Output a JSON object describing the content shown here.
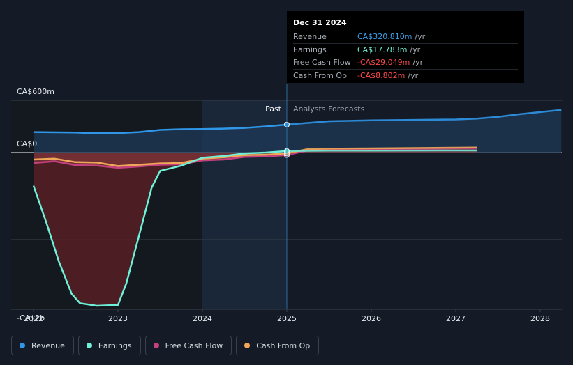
{
  "tooltip": {
    "date": "Dec 31 2024",
    "rows": [
      {
        "label": "Revenue",
        "value": "CA$320.810m",
        "unit": "/yr",
        "color": "#3b9fe8"
      },
      {
        "label": "Earnings",
        "value": "CA$17.783m",
        "unit": "/yr",
        "color": "#6ff0d8"
      },
      {
        "label": "Free Cash Flow",
        "value": "-CA$29.049m",
        "unit": "/yr",
        "color": "#ff4a4a"
      },
      {
        "label": "Cash From Op",
        "value": "-CA$8.802m",
        "unit": "/yr",
        "color": "#ff4a4a"
      }
    ]
  },
  "labels": {
    "past": "Past",
    "forecast": "Analysts Forecasts"
  },
  "legend": [
    {
      "label": "Revenue",
      "color": "#2f96e8"
    },
    {
      "label": "Earnings",
      "color": "#6ff0d8"
    },
    {
      "label": "Free Cash Flow",
      "color": "#c3417f"
    },
    {
      "label": "Cash From Op",
      "color": "#f0a858"
    }
  ],
  "chart_data": {
    "type": "line",
    "x_ticks": [
      "2022",
      "2023",
      "2024",
      "2025",
      "2026",
      "2027",
      "2028"
    ],
    "y_ticks": [
      {
        "label": "CA$600m",
        "value": 600
      },
      {
        "label": "CA$0",
        "value": 0
      },
      {
        "label": "-CA$2b",
        "value": -1800
      }
    ],
    "ylim": [
      -1800,
      600
    ],
    "xlim": [
      2022.0,
      2028.25
    ],
    "divider": 2025.0,
    "series": [
      {
        "name": "Revenue",
        "color": "#2f96e8",
        "x": [
          2022.0,
          2022.5,
          2022.7,
          2023.0,
          2023.25,
          2023.5,
          2023.75,
          2024.0,
          2024.25,
          2024.5,
          2024.75,
          2025.0,
          2025.5,
          2026.0,
          2026.5,
          2027.0,
          2027.25,
          2027.5,
          2027.75,
          2028.0,
          2028.25
        ],
        "y": [
          235,
          230,
          222,
          223,
          235,
          260,
          268,
          270,
          275,
          283,
          300,
          321,
          360,
          370,
          375,
          380,
          390,
          410,
          440,
          465,
          490
        ]
      },
      {
        "name": "Earnings",
        "color": "#6ff0d8",
        "x": [
          2022.0,
          2022.15,
          2022.3,
          2022.45,
          2022.55,
          2022.75,
          2023.0,
          2023.1,
          2023.25,
          2023.4,
          2023.5,
          2023.75,
          2024.0,
          2024.25,
          2024.5,
          2024.75,
          2025.0,
          2025.25,
          2025.5,
          2026.0,
          2026.5,
          2027.0,
          2027.25
        ],
        "y": [
          -380,
          -800,
          -1250,
          -1620,
          -1730,
          -1760,
          -1750,
          -1500,
          -950,
          -400,
          -210,
          -150,
          -60,
          -40,
          -10,
          0,
          18,
          20,
          22,
          22,
          23,
          24,
          24
        ]
      },
      {
        "name": "Free Cash Flow",
        "color": "#c3417f",
        "x": [
          2022.0,
          2022.25,
          2022.5,
          2022.75,
          2023.0,
          2023.25,
          2023.5,
          2023.75,
          2024.0,
          2024.25,
          2024.5,
          2024.75,
          2025.0,
          2025.25,
          2025.5,
          2026.0,
          2026.5,
          2027.0,
          2027.25
        ],
        "y": [
          -120,
          -100,
          -145,
          -150,
          -175,
          -160,
          -140,
          -135,
          -90,
          -80,
          -50,
          -45,
          -29,
          25,
          35,
          40,
          43,
          48,
          50
        ]
      },
      {
        "name": "Cash From Op",
        "color": "#f0a858",
        "x": [
          2022.0,
          2022.25,
          2022.5,
          2022.75,
          2023.0,
          2023.25,
          2023.5,
          2023.75,
          2024.0,
          2024.25,
          2024.5,
          2024.75,
          2025.0,
          2025.25,
          2025.5,
          2026.0,
          2026.5,
          2027.0,
          2027.25
        ],
        "y": [
          -80,
          -70,
          -110,
          -115,
          -155,
          -140,
          -125,
          -120,
          -70,
          -55,
          -30,
          -25,
          -9,
          40,
          45,
          48,
          52,
          56,
          58
        ]
      }
    ]
  }
}
